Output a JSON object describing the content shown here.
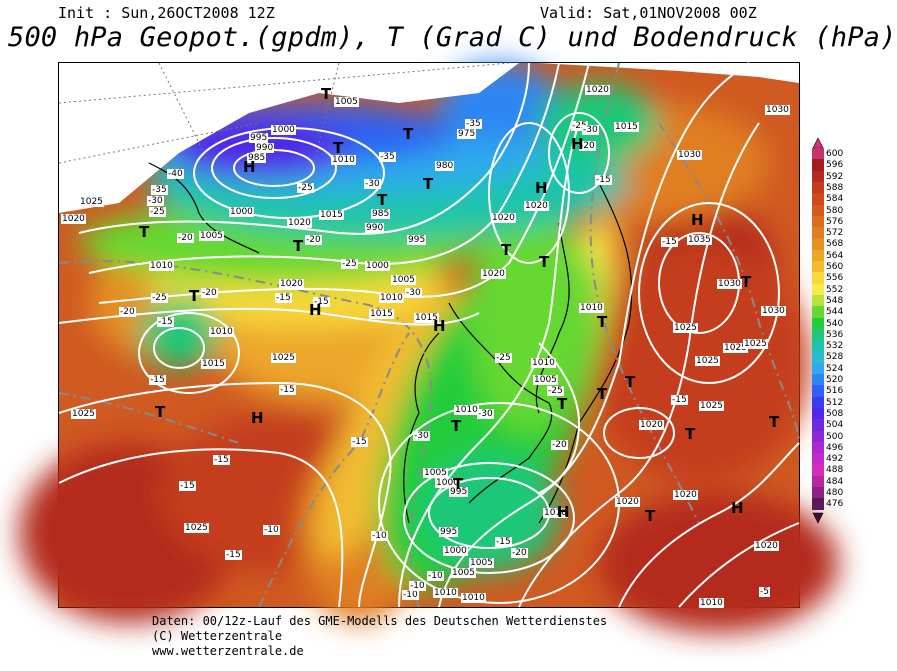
{
  "header": {
    "init": "Init : Sun,26OCT2008 12Z",
    "valid": "Valid: Sat,01NOV2008 00Z",
    "title": "500 hPa Geopot.(gpdm), T (Grad C) und Bodendruck (hPa)"
  },
  "legend": {
    "values": [
      "600",
      "596",
      "592",
      "588",
      "584",
      "580",
      "576",
      "572",
      "568",
      "564",
      "560",
      "556",
      "552",
      "548",
      "544",
      "540",
      "536",
      "532",
      "528",
      "524",
      "520",
      "516",
      "512",
      "508",
      "504",
      "500",
      "496",
      "492",
      "488",
      "484",
      "480",
      "476"
    ],
    "colors": [
      "#c8326e",
      "#9e1e1e",
      "#b42a1e",
      "#c43c1e",
      "#cf4a1e",
      "#d65a1e",
      "#dc6c1e",
      "#e07e22",
      "#e69024",
      "#eca62a",
      "#f2bc30",
      "#f8d83a",
      "#f6ec48",
      "#b4e43a",
      "#66d830",
      "#22cc3a",
      "#1ec878",
      "#1ec4aa",
      "#28bcd4",
      "#2eaaee",
      "#2e86f2",
      "#2e62f2",
      "#3a3cf0",
      "#5028e6",
      "#6e28e0",
      "#8c28d8",
      "#aa28d0",
      "#c42ac8",
      "#d42cbc",
      "#b42a9e",
      "#8c2282",
      "#5a1a5a"
    ]
  },
  "map": {
    "pressure_labels": [
      {
        "text": "1005"
      },
      {
        "text": "995"
      },
      {
        "text": "990"
      },
      {
        "text": "985"
      },
      {
        "text": "1000"
      },
      {
        "text": "1010"
      },
      {
        "text": "980"
      },
      {
        "text": "975"
      },
      {
        "text": "1020"
      },
      {
        "text": "1025"
      },
      {
        "text": "1015"
      },
      {
        "text": "1020"
      },
      {
        "text": "1025"
      },
      {
        "text": "1010"
      },
      {
        "text": "1005"
      },
      {
        "text": "1000"
      },
      {
        "text": "1020"
      },
      {
        "text": "985"
      },
      {
        "text": "990"
      },
      {
        "text": "995"
      },
      {
        "text": "1000"
      },
      {
        "text": "1005"
      },
      {
        "text": "1010"
      },
      {
        "text": "1015"
      },
      {
        "text": "1020"
      },
      {
        "text": "1015"
      },
      {
        "text": "1010"
      },
      {
        "text": "1020"
      },
      {
        "text": "1020"
      },
      {
        "text": "1020"
      },
      {
        "text": "1030"
      },
      {
        "text": "1035"
      },
      {
        "text": "1030"
      },
      {
        "text": "1030"
      },
      {
        "text": "1030"
      },
      {
        "text": "1025"
      },
      {
        "text": "1025"
      },
      {
        "text": "1025"
      },
      {
        "text": "1025"
      },
      {
        "text": "1025"
      },
      {
        "text": "1020"
      },
      {
        "text": "1010"
      },
      {
        "text": "1005"
      },
      {
        "text": "1010"
      },
      {
        "text": "1015"
      },
      {
        "text": "1025"
      },
      {
        "text": "1010"
      },
      {
        "text": "1005"
      },
      {
        "text": "1000"
      },
      {
        "text": "995"
      },
      {
        "text": "995"
      },
      {
        "text": "1000"
      },
      {
        "text": "1005"
      },
      {
        "text": "1010"
      },
      {
        "text": "1010"
      },
      {
        "text": "1015"
      },
      {
        "text": "1020"
      },
      {
        "text": "1020"
      },
      {
        "text": "1025"
      },
      {
        "text": "1020"
      },
      {
        "text": "1010"
      },
      {
        "text": "1005"
      },
      {
        "text": "1020"
      },
      {
        "text": "1015"
      },
      {
        "text": "1010"
      },
      {
        "text": "1025"
      }
    ],
    "temp_labels": [
      {
        "text": "-40"
      },
      {
        "text": "-35"
      },
      {
        "text": "-30"
      },
      {
        "text": "-25"
      },
      {
        "text": "-35"
      },
      {
        "text": "-30"
      },
      {
        "text": "-25"
      },
      {
        "text": "-20"
      },
      {
        "text": "-20"
      },
      {
        "text": "-25"
      },
      {
        "text": "-20"
      },
      {
        "text": "-15"
      },
      {
        "text": "-15"
      },
      {
        "text": "-15"
      },
      {
        "text": "-15"
      },
      {
        "text": "-15"
      },
      {
        "text": "-15"
      },
      {
        "text": "-15"
      },
      {
        "text": "-10"
      },
      {
        "text": "-15"
      },
      {
        "text": "-20"
      },
      {
        "text": "-25"
      },
      {
        "text": "-30"
      },
      {
        "text": "-25"
      },
      {
        "text": "-30"
      },
      {
        "text": "-20"
      },
      {
        "text": "-15"
      },
      {
        "text": "-10"
      },
      {
        "text": "-10"
      },
      {
        "text": "-10"
      },
      {
        "text": "-15"
      },
      {
        "text": "-15"
      },
      {
        "text": "-15"
      },
      {
        "text": "-5"
      },
      {
        "text": "-25"
      },
      {
        "text": "-20"
      },
      {
        "text": "-30"
      },
      {
        "text": "-35"
      },
      {
        "text": "-25"
      },
      {
        "text": "-30"
      },
      {
        "text": "-20"
      },
      {
        "text": "-15"
      },
      {
        "text": "-10"
      }
    ],
    "pressure_centers": [
      {
        "text": "H"
      },
      {
        "text": "H"
      },
      {
        "text": "H"
      },
      {
        "text": "H"
      },
      {
        "text": "H"
      },
      {
        "text": "H"
      },
      {
        "text": "H"
      },
      {
        "text": "H"
      },
      {
        "text": "H"
      },
      {
        "text": "T"
      },
      {
        "text": "T"
      },
      {
        "text": "T"
      },
      {
        "text": "T"
      },
      {
        "text": "T"
      },
      {
        "text": "T"
      },
      {
        "text": "T"
      },
      {
        "text": "T"
      },
      {
        "text": "T"
      },
      {
        "text": "T"
      },
      {
        "text": "T"
      },
      {
        "text": "T"
      },
      {
        "text": "T"
      },
      {
        "text": "T"
      },
      {
        "text": "T"
      },
      {
        "text": "T"
      },
      {
        "text": "T"
      },
      {
        "text": "T"
      },
      {
        "text": "T"
      },
      {
        "text": "T"
      },
      {
        "text": "T"
      }
    ]
  },
  "footer": {
    "line1": "Daten: 00/12z-Lauf des GME-Modells des Deutschen Wetterdienstes",
    "line2": "(C) Wetterzentrale",
    "line3": "www.wetterzentrale.de"
  }
}
